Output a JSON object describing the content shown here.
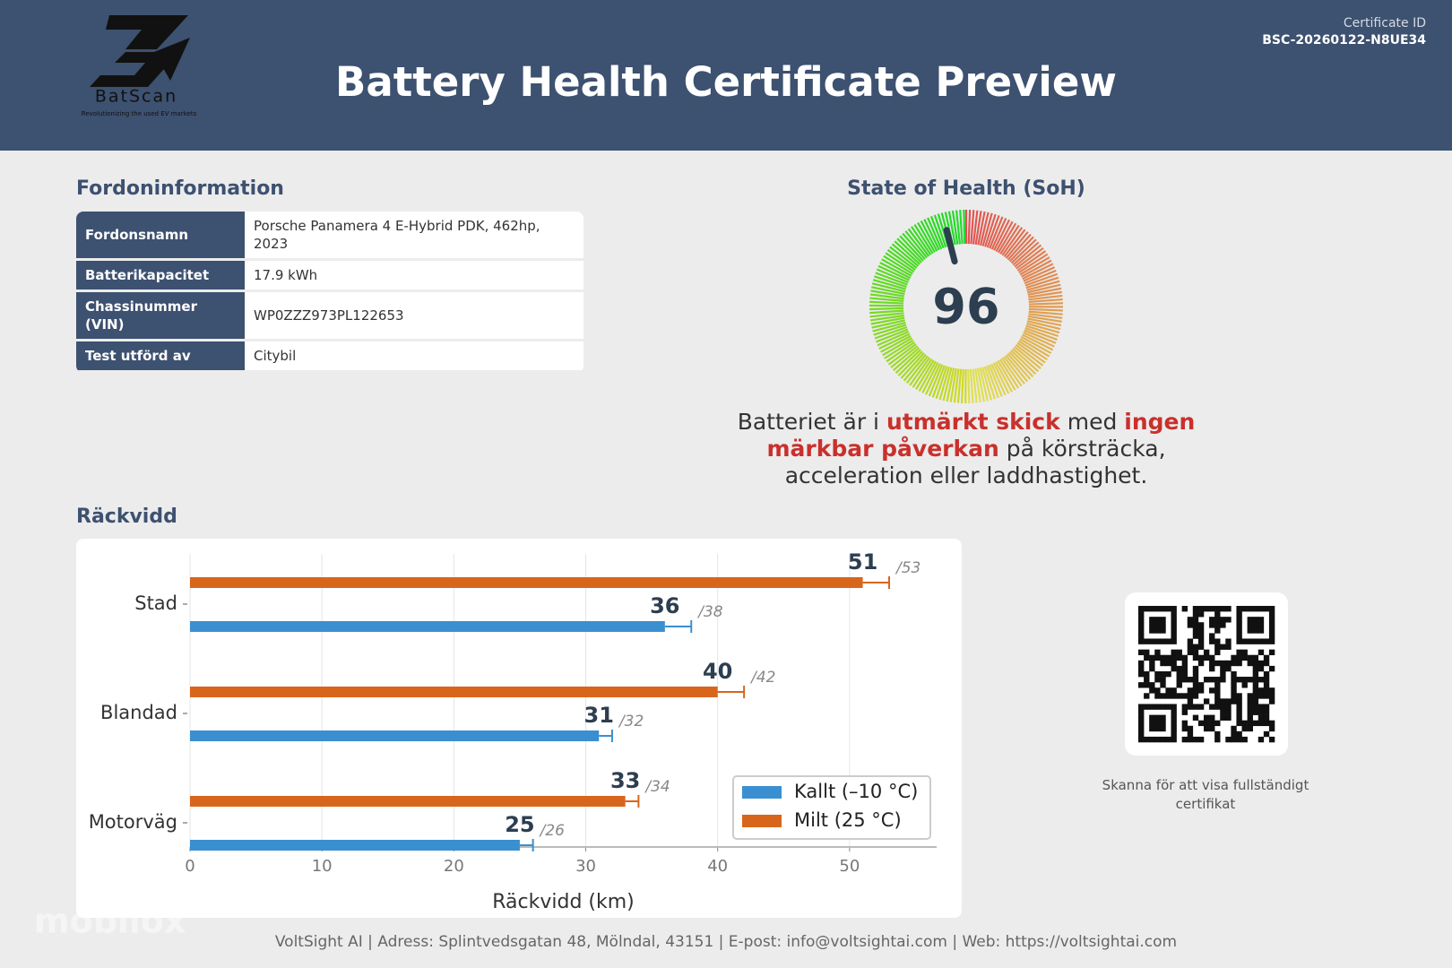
{
  "header": {
    "logo_name": "BatScan",
    "logo_tagline": "Revolutionizing the used EV markets",
    "title": "Battery Health Certificate Preview",
    "certificate_label": "Certificate ID",
    "certificate_id": "BSC-20260122-N8UE34"
  },
  "vehicle": {
    "heading": "Fordoninformation",
    "rows": [
      [
        "Fordonsnamn",
        "Porsche Panamera 4 E-Hybrid PDK, 462hp, 2023"
      ],
      [
        "Batterikapacitet",
        "17.9 kWh"
      ],
      [
        "Chassinummer (VIN)",
        "WP0ZZZ973PL122653"
      ],
      [
        "Test utförd av",
        "Citybil"
      ]
    ]
  },
  "soh": {
    "heading": "State of Health (SoH)",
    "score": 96,
    "description": [
      {
        "text": "Batteriet är i ",
        "highlight": false
      },
      {
        "text": "utmärkt skick",
        "highlight": true
      },
      {
        "text": " med ",
        "highlight": false
      },
      {
        "text": "ingen märkbar påverkan",
        "highlight": true
      },
      {
        "text": " på körsträcka, acceleration eller laddhastighet.",
        "highlight": false
      }
    ]
  },
  "range_heading": "Räckvidd",
  "chart_data": {
    "type": "hbar",
    "categories": [
      "Stad",
      "Blandad",
      "Motorväg"
    ],
    "series": [
      {
        "name": "Kallt (–10 °C)",
        "color": "#3a8fd0",
        "values": [
          36,
          31,
          25
        ],
        "max": [
          38,
          32,
          26
        ],
        "max_labels": [
          "/38",
          "/32",
          "/26"
        ]
      },
      {
        "name": "Milt (25 °C)",
        "color": "#d8651c",
        "values": [
          51,
          40,
          33
        ],
        "max": [
          53,
          42,
          34
        ],
        "max_labels": [
          "/53",
          "/42",
          "/34"
        ]
      }
    ],
    "xlim": [
      0,
      56.6
    ],
    "xticks": [
      0,
      10,
      20,
      30,
      40,
      50
    ],
    "xlabel": "Räckvidd (km)",
    "grid": true,
    "legend": "lower-right"
  },
  "qr_caption": "Skanna för att visa fullständigt certifikat",
  "watermark": "mobilox",
  "footer": "VoltSight AI | Adress: Splintvedsgatan 48, Mölndal, 43151 | E-post: info@voltsightai.com | Web: https://voltsightai.com"
}
